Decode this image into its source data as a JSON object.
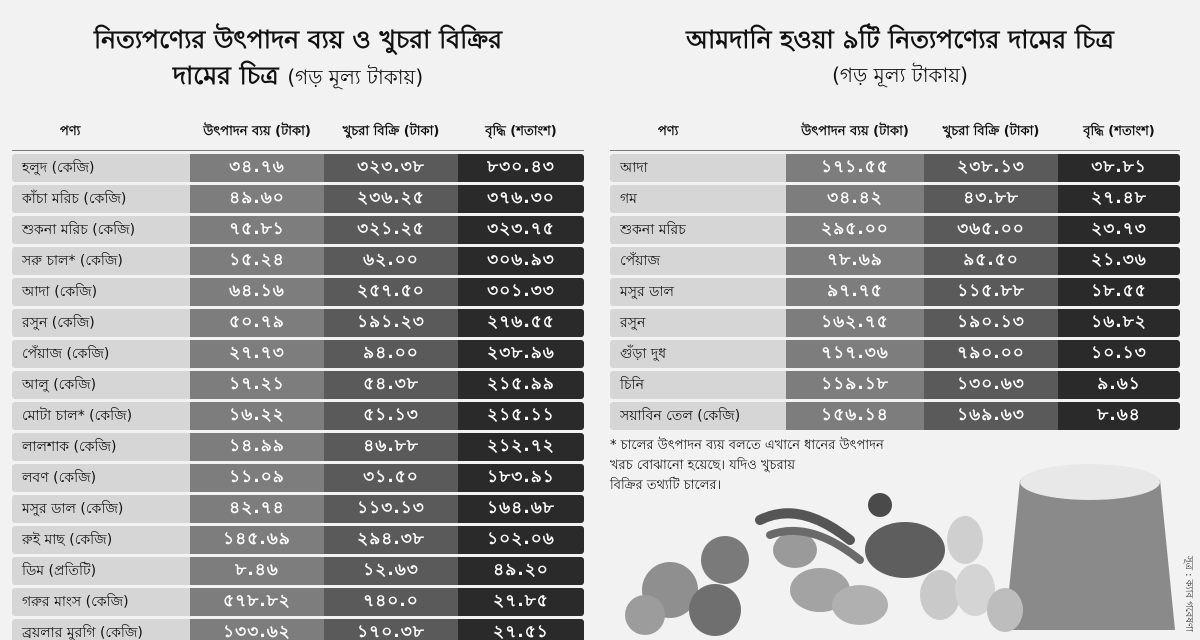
{
  "left": {
    "title_line1": "নিত্যপণ্যের উৎপাদন ব্যয় ও খুচরা বিক্রির",
    "title_line2": "দামের চিত্র",
    "title_unit": "(গড় মূল্য টাকায়)",
    "headers": [
      "পণ্য",
      "উৎপাদন ব্যয় (টাকা)",
      "খুচরা বিক্রি (টাকা)",
      "বৃদ্ধি (শতাংশ)"
    ],
    "rows": [
      [
        "হলুদ (কেজি)",
        "৩৪.৭৬",
        "৩২৩.৩৮",
        "৮৩০.৪৩"
      ],
      [
        "কাঁচা মরিচ (কেজি)",
        "৪৯.৬০",
        "২৩৬.২৫",
        "৩৭৬.৩০"
      ],
      [
        "শুকনা মরিচ (কেজি)",
        "৭৫.৮১",
        "৩২১.২৫",
        "৩২৩.৭৫"
      ],
      [
        "সরু চাল* (কেজি)",
        "১৫.২৪",
        "৬২.০০",
        "৩০৬.৯৩"
      ],
      [
        "আদা (কেজি)",
        "৬৪.১৬",
        "২৫৭.৫০",
        "৩০১.৩৩"
      ],
      [
        "রসুন (কেজি)",
        "৫০.৭৯",
        "১৯১.২৩",
        "২৭৬.৫৫"
      ],
      [
        "পেঁয়াজ (কেজি)",
        "২৭.৭৩",
        "৯৪.০০",
        "২৩৮.৯৬"
      ],
      [
        "আলু (কেজি)",
        "১৭.২১",
        "৫৪.৩৮",
        "২১৫.৯৯"
      ],
      [
        "মোটা চাল* (কেজি)",
        "১৬.২২",
        "৫১.১৩",
        "২১৫.১১"
      ],
      [
        "লালশাক (কেজি)",
        "১৪.৯৯",
        "৪৬.৮৮",
        "২১২.৭২"
      ],
      [
        "লবণ (কেজি)",
        "১১.০৯",
        "৩১.৫০",
        "১৮৩.৯১"
      ],
      [
        "মসুর ডাল (কেজি)",
        "৪২.৭৪",
        "১১৩.১৩",
        "১৬৪.৬৮"
      ],
      [
        "রুই মাছ (কেজি)",
        "১৪৫.৬৯",
        "২৯৪.৩৮",
        "১০২.০৬"
      ],
      [
        "ডিম (প্রতিটি)",
        "৮.৪৬",
        "১২.৬৩",
        "৪৯.২০"
      ],
      [
        "গরুর মাংস (কেজি)",
        "৫৭৮.৮২",
        "৭৪০.০",
        "২৭.৮৫"
      ],
      [
        "ব্রয়লার মুরগি (কেজি)",
        "১৩৩.৬২",
        "১৭০.৩৮",
        "২৭.৫১"
      ]
    ]
  },
  "right": {
    "title": "আমদানি হওয়া ৯টি নিত্যপণ্যের দামের চিত্র",
    "title_unit": "(গড় মূল্য টাকায়)",
    "headers": [
      "পণ্য",
      "উৎপাদন ব্যয় (টাকা)",
      "খুচরা বিক্রি (টাকা)",
      "বৃদ্ধি (শতাংশ)"
    ],
    "rows": [
      [
        "আদা",
        "১৭১.৫৫",
        "২৩৮.১৩",
        "৩৮.৮১"
      ],
      [
        "গম",
        "৩৪.৪২",
        "৪৩.৮৮",
        "২৭.৪৮"
      ],
      [
        "শুকনা মরিচ",
        "২৯৫.০০",
        "৩৬৫.০০",
        "২৩.৭৩"
      ],
      [
        "পেঁয়াজ",
        "৭৮.৬৯",
        "৯৫.৫০",
        "২১.৩৬"
      ],
      [
        "মসুর ডাল",
        "৯৭.৭৫",
        "১১৫.৮৮",
        "১৮.৫৫"
      ],
      [
        "রসুন",
        "১৬২.৭৫",
        "১৯০.১৩",
        "১৬.৮২"
      ],
      [
        "গুঁড়া দুধ",
        "৭১৭.৩৬",
        "৭৯০.০০",
        "১০.১৩"
      ],
      [
        "চিনি",
        "১১৯.১৮",
        "১৩০.৬৩",
        "৯.৬১"
      ],
      [
        "সয়াবিন তেল (কেজি)",
        "১৫৬.১৪",
        "১৬৯.৬৩",
        "৮.৬৪"
      ]
    ]
  },
  "note": {
    "line1": "* চালের উৎপাদন ব্যয় বলতে এখানে ধানের উৎপাদন",
    "line2": "খরচ বোঝানো হয়েছে। যদিও খুচরায়",
    "line3": "বিক্রির তথ্যটি চালের।"
  },
  "source": "সূত্র : ক্যাব গবেষণা"
}
